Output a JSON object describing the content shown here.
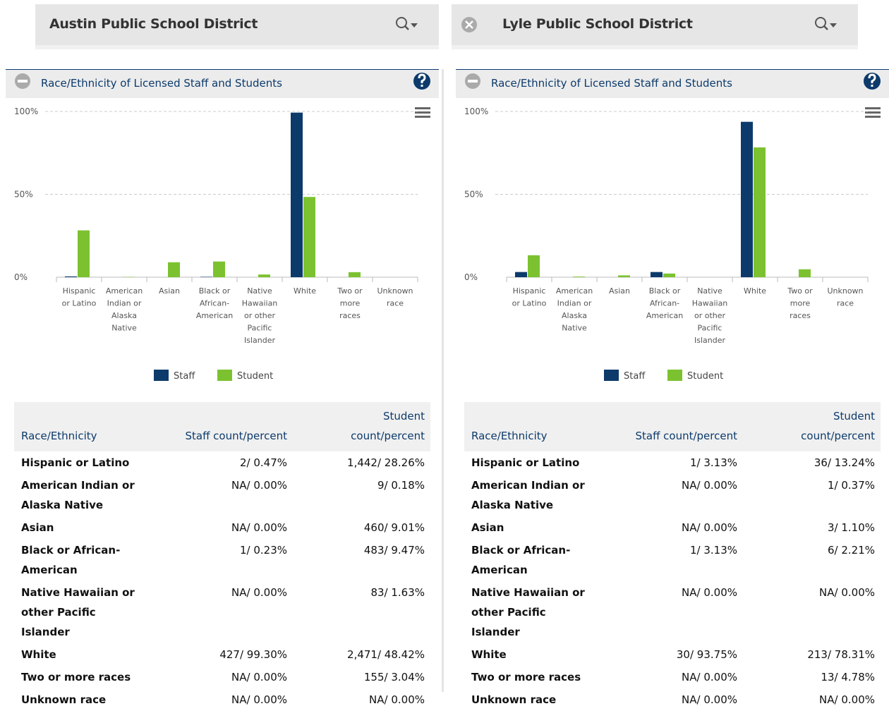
{
  "chart_data": [
    {
      "type": "bar",
      "categories": [
        "Hispanic or Latino",
        "American Indian or Alaska Native",
        "Asian",
        "Black or African-American",
        "Native Hawaiian or other Pacific Islander",
        "White",
        "Two or more races",
        "Unknown race"
      ],
      "series": [
        {
          "name": "Staff",
          "color": "#0c3a6b",
          "values": [
            0.47,
            0,
            0,
            0.23,
            0,
            99.3,
            0,
            0
          ]
        },
        {
          "name": "Student",
          "color": "#7cc230",
          "values": [
            28.26,
            0.18,
            9.01,
            9.47,
            1.63,
            48.42,
            3.04,
            0
          ]
        }
      ],
      "ylim": [
        0,
        100
      ],
      "yticks": [
        {
          "value": 0,
          "label": "0%"
        },
        {
          "value": 50,
          "label": "50%"
        },
        {
          "value": 100,
          "label": "100%"
        }
      ],
      "grid": true,
      "legend": "bottom"
    },
    {
      "type": "bar",
      "categories": [
        "Hispanic or Latino",
        "American Indian or Alaska Native",
        "Asian",
        "Black or African-American",
        "Native Hawaiian or other Pacific Islander",
        "White",
        "Two or more races",
        "Unknown race"
      ],
      "series": [
        {
          "name": "Staff",
          "color": "#0c3a6b",
          "values": [
            3.13,
            0,
            0,
            3.13,
            0,
            93.75,
            0,
            0
          ]
        },
        {
          "name": "Student",
          "color": "#7cc230",
          "values": [
            13.24,
            0.37,
            1.1,
            2.21,
            0,
            78.31,
            4.78,
            0
          ]
        }
      ],
      "ylim": [
        0,
        100
      ],
      "yticks": [
        {
          "value": 0,
          "label": "0%"
        },
        {
          "value": 50,
          "label": "50%"
        },
        {
          "value": 100,
          "label": "100%"
        }
      ],
      "grid": true,
      "legend": "bottom"
    }
  ],
  "panels": [
    {
      "district": "Austin Public School District",
      "section_title": "Race/Ethnicity of Licensed Staff and Students",
      "table": {
        "columns": [
          "Race/Ethnicity",
          "Staff count/percent",
          "Student count/percent"
        ],
        "rows": [
          [
            "Hispanic or Latino",
            "2/ 0.47%",
            "1,442/ 28.26%"
          ],
          [
            "American Indian or Alaska Native",
            "NA/ 0.00%",
            "9/ 0.18%"
          ],
          [
            "Asian",
            "NA/ 0.00%",
            "460/ 9.01%"
          ],
          [
            "Black or African-American",
            "1/ 0.23%",
            "483/ 9.47%"
          ],
          [
            "Native Hawaiian or other Pacific Islander",
            "NA/ 0.00%",
            "83/ 1.63%"
          ],
          [
            "White",
            "427/ 99.30%",
            "2,471/ 48.42%"
          ],
          [
            "Two or more races",
            "NA/ 0.00%",
            "155/ 3.04%"
          ],
          [
            "Unknown race",
            "NA/ 0.00%",
            "NA/ 0.00%"
          ]
        ]
      }
    },
    {
      "district": "Lyle Public School District",
      "section_title": "Race/Ethnicity of Licensed Staff and Students",
      "table": {
        "columns": [
          "Race/Ethnicity",
          "Staff count/percent",
          "Student count/percent"
        ],
        "rows": [
          [
            "Hispanic or Latino",
            "1/ 3.13%",
            "36/ 13.24%"
          ],
          [
            "American Indian or Alaska Native",
            "NA/ 0.00%",
            "1/ 0.37%"
          ],
          [
            "Asian",
            "NA/ 0.00%",
            "3/ 1.10%"
          ],
          [
            "Black or African-American",
            "1/ 3.13%",
            "6/ 2.21%"
          ],
          [
            "Native Hawaiian or other Pacific Islander",
            "NA/ 0.00%",
            "NA/ 0.00%"
          ],
          [
            "White",
            "30/ 93.75%",
            "213/ 78.31%"
          ],
          [
            "Two or more races",
            "NA/ 0.00%",
            "13/ 4.78%"
          ],
          [
            "Unknown race",
            "NA/ 0.00%",
            "NA/ 0.00%"
          ]
        ]
      }
    }
  ]
}
